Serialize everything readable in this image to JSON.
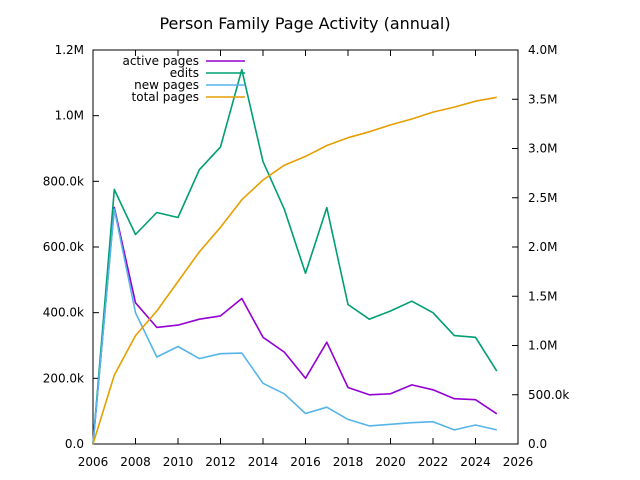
{
  "chart_data": {
    "type": "line",
    "title": "Person  Family Page Activity (annual)",
    "xlabel": "",
    "ylabel": "",
    "y2label": "",
    "xlim": [
      2006,
      2026
    ],
    "ylim": [
      0,
      1200000
    ],
    "y2lim": [
      0,
      4000000
    ],
    "grid": false,
    "legend": "top-left",
    "x_ticks": [
      {
        "value": 2006,
        "label": "2006"
      },
      {
        "value": 2008,
        "label": "2008"
      },
      {
        "value": 2010,
        "label": "2010"
      },
      {
        "value": 2012,
        "label": "2012"
      },
      {
        "value": 2014,
        "label": "2014"
      },
      {
        "value": 2016,
        "label": "2016"
      },
      {
        "value": 2018,
        "label": "2018"
      },
      {
        "value": 2020,
        "label": "2020"
      },
      {
        "value": 2022,
        "label": "2022"
      },
      {
        "value": 2024,
        "label": "2024"
      },
      {
        "value": 2026,
        "label": "2026"
      }
    ],
    "y_ticks": [
      {
        "value": 0,
        "label": "0.0"
      },
      {
        "value": 200000,
        "label": "200.0k"
      },
      {
        "value": 400000,
        "label": "400.0k"
      },
      {
        "value": 600000,
        "label": "600.0k"
      },
      {
        "value": 800000,
        "label": "800.0k"
      },
      {
        "value": 1000000,
        "label": "1.0M"
      },
      {
        "value": 1200000,
        "label": "1.2M"
      }
    ],
    "y2_ticks": [
      {
        "value": 0,
        "label": "0.0"
      },
      {
        "value": 500000,
        "label": "500.0k"
      },
      {
        "value": 1000000,
        "label": "1.0M"
      },
      {
        "value": 1500000,
        "label": "1.5M"
      },
      {
        "value": 2000000,
        "label": "2.0M"
      },
      {
        "value": 2500000,
        "label": "2.5M"
      },
      {
        "value": 3000000,
        "label": "3.0M"
      },
      {
        "value": 3500000,
        "label": "3.5M"
      },
      {
        "value": 4000000,
        "label": "4.0M"
      }
    ],
    "x": [
      2006,
      2007,
      2008,
      2009,
      2010,
      2011,
      2012,
      2013,
      2014,
      2015,
      2016,
      2017,
      2018,
      2019,
      2020,
      2021,
      2022,
      2023,
      2024,
      2025
    ],
    "series": [
      {
        "name": "active pages",
        "axis": "left",
        "color": "#9400d3",
        "values": [
          0,
          720000,
          430000,
          355000,
          362000,
          380000,
          390000,
          443000,
          325000,
          280000,
          200000,
          310000,
          172000,
          150000,
          153000,
          180000,
          165000,
          138000,
          135000,
          92000
        ]
      },
      {
        "name": "edits",
        "axis": "left",
        "color": "#009e73",
        "values": [
          0,
          775000,
          638000,
          705000,
          690000,
          835000,
          905000,
          1140000,
          860000,
          715000,
          520000,
          720000,
          425000,
          380000,
          405000,
          435000,
          400000,
          330000,
          325000,
          222000
        ]
      },
      {
        "name": "new pages",
        "axis": "left",
        "color": "#56b4e9",
        "values": [
          0,
          715000,
          400000,
          265000,
          297000,
          260000,
          275000,
          277000,
          185000,
          153000,
          93000,
          112000,
          75000,
          55000,
          60000,
          65000,
          68000,
          43000,
          58000,
          43000
        ]
      },
      {
        "name": "total pages",
        "axis": "right",
        "color": "#e69f00",
        "values": [
          0,
          700000,
          1100000,
          1350000,
          1650000,
          1950000,
          2200000,
          2480000,
          2680000,
          2830000,
          2920000,
          3030000,
          3110000,
          3170000,
          3240000,
          3300000,
          3370000,
          3420000,
          3480000,
          3520000
        ]
      }
    ]
  }
}
